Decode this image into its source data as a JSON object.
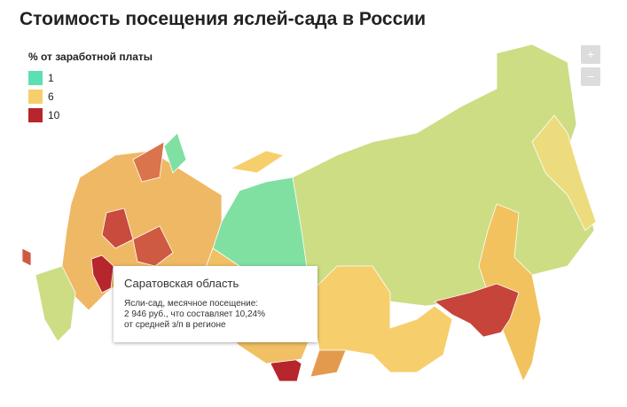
{
  "title": "Стоимость посещения яслей-сада в России",
  "legend": {
    "title": "% от заработной платы",
    "items": [
      {
        "label": 1,
        "color": "#5cdfb1"
      },
      {
        "label": 6,
        "color": "#f6cf6c"
      },
      {
        "label": 10,
        "color": "#b7252d"
      }
    ]
  },
  "zoom": {
    "in": "+",
    "out": "−"
  },
  "tooltip": {
    "title": "Саратовская область",
    "lines": [
      "Ясли-сад, месячное посещение:",
      "2 946 руб., что составляет 10,24%",
      "от средней з/п в регионе"
    ]
  }
}
